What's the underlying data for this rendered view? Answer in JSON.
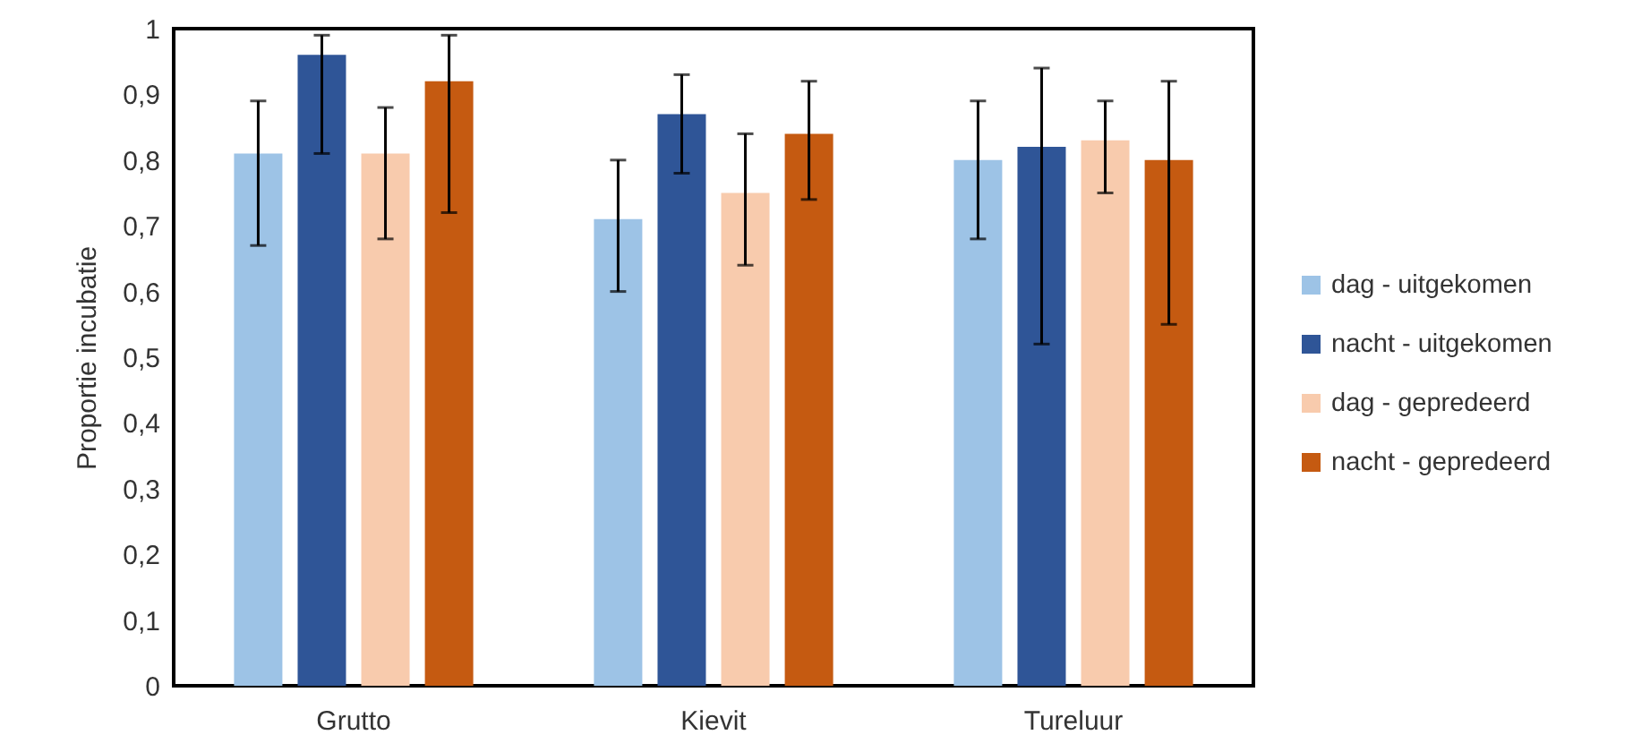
{
  "chart_data": {
    "type": "bar",
    "ylabel": "Proportie incubatie",
    "categories": [
      "Grutto",
      "Kievit",
      "Tureluur"
    ],
    "series": [
      {
        "name": "dag - uitgekomen",
        "color": "#9dc3e6",
        "values": [
          0.81,
          0.71,
          0.8
        ],
        "errors": [
          [
            0.67,
            0.89
          ],
          [
            0.6,
            0.8
          ],
          [
            0.68,
            0.89
          ]
        ]
      },
      {
        "name": "nacht - uitgekomen",
        "color": "#2f5597",
        "values": [
          0.96,
          0.87,
          0.82
        ],
        "errors": [
          [
            0.81,
            0.99
          ],
          [
            0.78,
            0.93
          ],
          [
            0.52,
            0.94
          ]
        ]
      },
      {
        "name": "dag - gepredeerd",
        "color": "#f8cbad",
        "values": [
          0.81,
          0.75,
          0.83
        ],
        "errors": [
          [
            0.68,
            0.88
          ],
          [
            0.64,
            0.84
          ],
          [
            0.75,
            0.89
          ]
        ]
      },
      {
        "name": "nacht - gepredeerd",
        "color": "#c55a11",
        "values": [
          0.92,
          0.84,
          0.8
        ],
        "errors": [
          [
            0.72,
            0.99
          ],
          [
            0.74,
            0.92
          ],
          [
            0.55,
            0.92
          ]
        ]
      }
    ],
    "ylim": [
      0,
      1
    ],
    "yticks": [
      0,
      {
        "value": 0.1,
        "label": "0,1"
      },
      {
        "value": 0.2,
        "label": "0,2"
      },
      {
        "value": 0.3,
        "label": "0,3"
      },
      {
        "value": 0.4,
        "label": "0,4"
      },
      {
        "value": 0.5,
        "label": "0,5"
      },
      {
        "value": 0.6,
        "label": "0,6"
      },
      {
        "value": 0.7,
        "label": "0,7"
      },
      {
        "value": 0.8,
        "label": "0,8"
      },
      {
        "value": 0.9,
        "label": "0,9"
      },
      1
    ],
    "grid": false,
    "legend": "right"
  }
}
